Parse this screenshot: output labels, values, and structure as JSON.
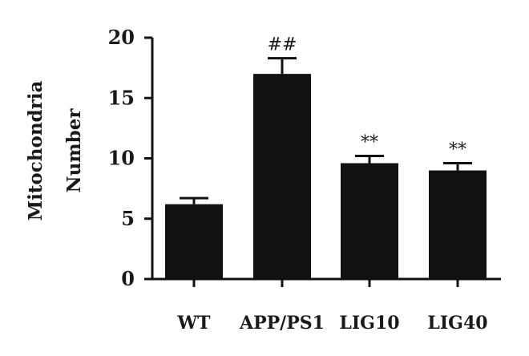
{
  "chart_data": {
    "type": "bar",
    "title": "",
    "xlabel": "",
    "ylabel": [
      "Mitochondria",
      "Number"
    ],
    "ylim": [
      0,
      20
    ],
    "yticks": [
      0,
      5,
      10,
      15,
      20
    ],
    "categories": [
      "WT",
      "APP/PS1",
      "LIG10",
      "LIG40"
    ],
    "values": [
      6.2,
      17.0,
      9.6,
      9.0
    ],
    "errors": [
      0.5,
      1.3,
      0.6,
      0.6
    ],
    "annotations": [
      "",
      "##",
      "**",
      "**"
    ],
    "bar_color": "#111111",
    "grid": false,
    "legend": "none"
  }
}
